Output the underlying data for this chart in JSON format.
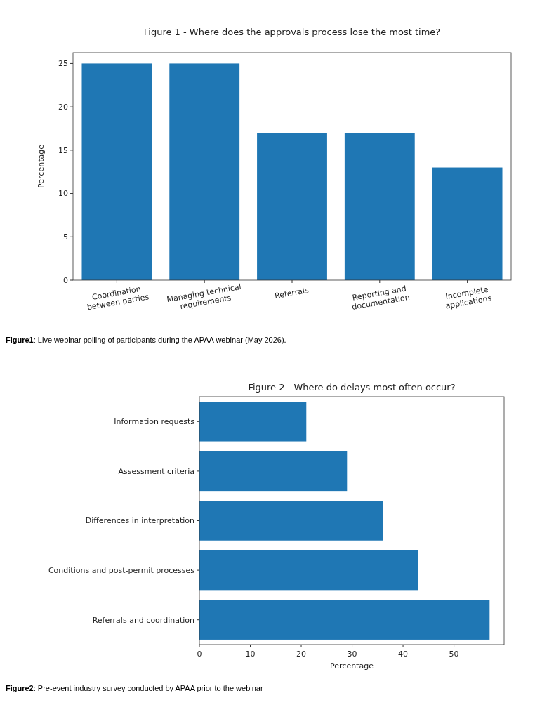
{
  "chart_data": [
    {
      "type": "bar",
      "title": "Figure 1 - Where does the approvals process lose the most time?",
      "ylabel": "Percentage",
      "categories": [
        "Coordination between parties",
        "Managing technical requirements",
        "Referrals",
        "Reporting and documentation",
        "Incomplete applications"
      ],
      "values": [
        25,
        25,
        17,
        17,
        13
      ],
      "color": "#1f77b4",
      "ylim": [
        0,
        26.25
      ],
      "yticks": [
        0,
        5,
        10,
        15,
        20,
        25
      ],
      "annotations": [
        "Figure1: Live webinar polling of participants during the APAA webinar (May 2026)."
      ]
    },
    {
      "type": "bar",
      "orientation": "horizontal",
      "title": "Figure 2 - Where do delays most often occur?",
      "xlabel": "Percentage",
      "categories": [
        "Information requests",
        "Assessment criteria",
        "Differences in interpretation",
        "Conditions and post-permit processes",
        "Referrals and coordination"
      ],
      "values": [
        21,
        29,
        36,
        43,
        57
      ],
      "color": "#1f77b4",
      "xlim": [
        0,
        59.85
      ],
      "xticks": [
        0,
        10,
        20,
        30,
        40,
        50
      ],
      "annotations": [
        "Figure2: Pre-event industry survey conducted by APAA prior to the webinar"
      ]
    }
  ]
}
